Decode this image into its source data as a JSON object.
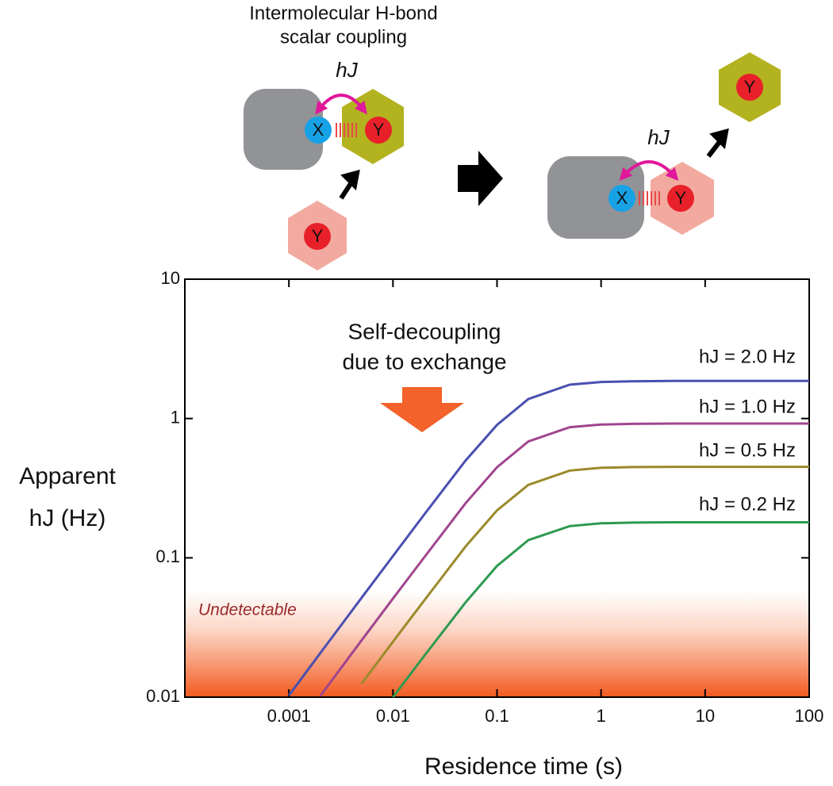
{
  "diagram": {
    "title_lines": [
      "Intermolecular H-bond",
      "scalar coupling"
    ],
    "coupling_label": "hJ",
    "donor_label": "X",
    "acceptor_label": "Y"
  },
  "chart_data": {
    "type": "line",
    "annotations": [
      "Self-decoupling",
      "due to exchange",
      "Undetectable"
    ],
    "x_label": "Residence time (s)",
    "y_label_lines": [
      "Apparent",
      "hJ (Hz)"
    ],
    "log_x": true,
    "log_y": true,
    "xlim": [
      0.0001,
      100
    ],
    "ylim": [
      0.01,
      10
    ],
    "xticks": [
      0.001,
      0.01,
      0.1,
      1,
      10,
      100
    ],
    "yticks": [
      0.01,
      0.1,
      1,
      10
    ],
    "x": [
      0.001,
      0.002,
      0.005,
      0.01,
      0.02,
      0.05,
      0.1,
      0.2,
      0.5,
      1,
      2,
      5,
      10,
      100
    ],
    "series": [
      {
        "name": "hJ = 2.0 Hz",
        "color": "#4a4fb0",
        "values": [
          0.0103,
          0.0207,
          0.0517,
          0.103,
          0.205,
          0.5,
          0.9,
          1.38,
          1.75,
          1.83,
          1.85,
          1.86,
          1.86,
          1.86
        ]
      },
      {
        "name": "hJ = 1.0 Hz",
        "color": "#a0458e",
        "values": [
          null,
          0.0102,
          0.0256,
          0.051,
          0.101,
          0.247,
          0.447,
          0.684,
          0.866,
          0.905,
          0.916,
          0.92,
          0.92,
          0.92
        ]
      },
      {
        "name": "hJ = 0.5 Hz",
        "color": "#9a8a2a",
        "values": [
          null,
          null,
          0.0125,
          0.025,
          0.0495,
          0.121,
          0.219,
          0.334,
          0.423,
          0.443,
          0.448,
          0.45,
          0.45,
          0.45
        ]
      },
      {
        "name": "hJ = 0.2 Hz",
        "color": "#2e9a50",
        "values": [
          null,
          null,
          null,
          0.01,
          0.0198,
          0.048,
          0.0875,
          0.134,
          0.169,
          0.177,
          0.179,
          0.18,
          0.18,
          0.18
        ]
      }
    ]
  }
}
